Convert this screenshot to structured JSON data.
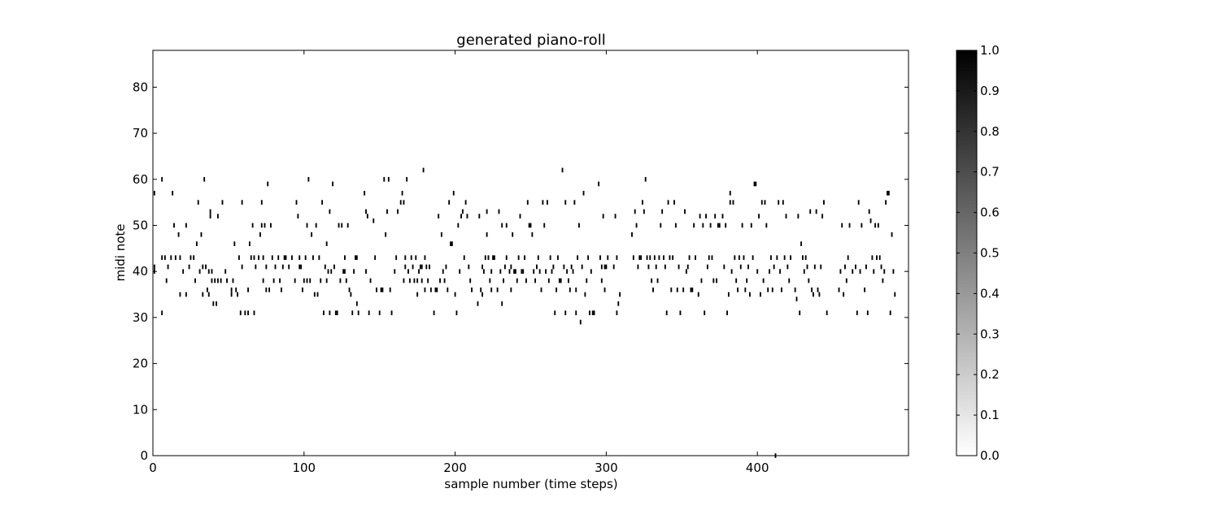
{
  "chart_data": {
    "type": "heatmap",
    "title": "generated piano-roll",
    "xlabel": "sample number (time steps)",
    "ylabel": "midi note",
    "xlim": [
      0,
      500
    ],
    "ylim": [
      0,
      88
    ],
    "xticks": [
      0,
      100,
      200,
      300,
      400
    ],
    "yticks": [
      0,
      10,
      20,
      30,
      40,
      50,
      60,
      70,
      80
    ],
    "colorbar": {
      "cmap": "gray_r",
      "min": 0.0,
      "max": 1.0,
      "ticks": [
        "0.0",
        "0.1",
        "0.2",
        "0.3",
        "0.4",
        "0.5",
        "0.6",
        "0.7",
        "0.8",
        "0.9",
        "1.0"
      ]
    },
    "notes": [
      [
        1,
        57
      ],
      [
        1,
        41
      ],
      [
        1,
        40
      ],
      [
        6,
        60
      ],
      [
        6,
        43
      ],
      [
        6,
        31
      ],
      [
        8,
        43
      ],
      [
        9,
        38
      ],
      [
        10,
        41
      ],
      [
        12,
        43
      ],
      [
        13,
        57
      ],
      [
        14,
        50
      ],
      [
        15,
        43
      ],
      [
        17,
        48
      ],
      [
        18,
        43
      ],
      [
        18,
        35
      ],
      [
        20,
        40
      ],
      [
        22,
        50
      ],
      [
        22,
        35
      ],
      [
        24,
        41
      ],
      [
        25,
        43
      ],
      [
        27,
        43
      ],
      [
        28,
        38
      ],
      [
        29,
        46
      ],
      [
        30,
        55
      ],
      [
        31,
        40
      ],
      [
        32,
        48
      ],
      [
        33,
        41
      ],
      [
        33,
        35
      ],
      [
        34,
        60
      ],
      [
        35,
        41
      ],
      [
        36,
        36
      ],
      [
        37,
        40
      ],
      [
        37,
        35
      ],
      [
        38,
        53
      ],
      [
        38,
        52
      ],
      [
        39,
        40
      ],
      [
        39,
        38
      ],
      [
        40,
        33
      ],
      [
        41,
        38
      ],
      [
        42,
        33
      ],
      [
        43,
        38
      ],
      [
        43,
        52
      ],
      [
        45,
        38
      ],
      [
        46,
        55
      ],
      [
        48,
        40
      ],
      [
        49,
        38
      ],
      [
        52,
        36
      ],
      [
        52,
        35
      ],
      [
        53,
        38
      ],
      [
        54,
        46
      ],
      [
        55,
        36
      ],
      [
        56,
        35
      ],
      [
        57,
        43
      ],
      [
        58,
        31
      ],
      [
        59,
        55
      ],
      [
        59,
        41
      ],
      [
        61,
        31
      ],
      [
        63,
        36
      ],
      [
        63,
        31
      ],
      [
        64,
        46
      ],
      [
        65,
        43
      ],
      [
        66,
        50
      ],
      [
        67,
        31
      ],
      [
        67,
        43
      ],
      [
        68,
        41
      ],
      [
        70,
        43
      ],
      [
        71,
        48
      ],
      [
        72,
        55
      ],
      [
        72,
        50
      ],
      [
        73,
        43
      ],
      [
        73,
        38
      ],
      [
        74,
        50
      ],
      [
        75,
        41
      ],
      [
        75,
        36
      ],
      [
        76,
        59
      ],
      [
        77,
        36
      ],
      [
        78,
        50
      ],
      [
        79,
        43
      ],
      [
        80,
        38
      ],
      [
        81,
        41
      ],
      [
        83,
        43
      ],
      [
        84,
        38
      ],
      [
        85,
        36
      ],
      [
        86,
        41
      ],
      [
        87,
        43
      ],
      [
        88,
        43
      ],
      [
        90,
        41
      ],
      [
        92,
        43
      ],
      [
        94,
        38
      ],
      [
        95,
        55
      ],
      [
        96,
        52
      ],
      [
        97,
        43
      ],
      [
        97,
        41
      ],
      [
        98,
        41
      ],
      [
        99,
        36
      ],
      [
        100,
        38
      ],
      [
        101,
        43
      ],
      [
        102,
        50
      ],
      [
        102,
        38
      ],
      [
        103,
        60
      ],
      [
        104,
        38
      ],
      [
        105,
        48
      ],
      [
        106,
        43
      ],
      [
        107,
        35
      ],
      [
        108,
        50
      ],
      [
        109,
        35
      ],
      [
        110,
        43
      ],
      [
        111,
        38
      ],
      [
        112,
        55
      ],
      [
        113,
        31
      ],
      [
        114,
        41
      ],
      [
        115,
        46
      ],
      [
        115,
        38
      ],
      [
        116,
        40
      ],
      [
        117,
        53
      ],
      [
        117,
        31
      ],
      [
        118,
        40
      ],
      [
        119,
        59
      ],
      [
        120,
        41
      ],
      [
        121,
        31
      ],
      [
        122,
        31
      ],
      [
        123,
        50
      ],
      [
        124,
        38
      ],
      [
        125,
        50
      ],
      [
        126,
        40
      ],
      [
        127,
        40
      ],
      [
        127,
        43
      ],
      [
        128,
        38
      ],
      [
        129,
        50
      ],
      [
        130,
        36
      ],
      [
        131,
        35
      ],
      [
        132,
        31
      ],
      [
        133,
        40
      ],
      [
        134,
        43
      ],
      [
        135,
        33
      ],
      [
        135,
        43
      ],
      [
        136,
        31
      ],
      [
        140,
        57
      ],
      [
        141,
        53
      ],
      [
        141,
        40
      ],
      [
        142,
        52
      ],
      [
        143,
        31
      ],
      [
        144,
        38
      ],
      [
        146,
        51
      ],
      [
        147,
        43
      ],
      [
        148,
        36
      ],
      [
        150,
        31
      ],
      [
        151,
        36
      ],
      [
        152,
        36
      ],
      [
        153,
        60
      ],
      [
        154,
        48
      ],
      [
        155,
        53
      ],
      [
        156,
        60
      ],
      [
        157,
        36
      ],
      [
        158,
        31
      ],
      [
        160,
        40
      ],
      [
        161,
        43
      ],
      [
        162,
        53
      ],
      [
        164,
        55
      ],
      [
        165,
        57
      ],
      [
        166,
        38
      ],
      [
        166,
        55
      ],
      [
        167,
        41
      ],
      [
        167,
        43
      ],
      [
        168,
        60
      ],
      [
        169,
        40
      ],
      [
        170,
        38
      ],
      [
        171,
        43
      ],
      [
        172,
        41
      ],
      [
        173,
        38
      ],
      [
        174,
        43
      ],
      [
        175,
        35
      ],
      [
        175,
        38
      ],
      [
        176,
        40
      ],
      [
        177,
        41
      ],
      [
        178,
        38
      ],
      [
        178,
        41
      ],
      [
        179,
        62
      ],
      [
        180,
        43
      ],
      [
        180,
        36
      ],
      [
        181,
        41
      ],
      [
        182,
        38
      ],
      [
        183,
        41
      ],
      [
        184,
        36
      ],
      [
        186,
        31
      ],
      [
        187,
        36
      ],
      [
        188,
        36
      ],
      [
        189,
        52
      ],
      [
        190,
        38
      ],
      [
        191,
        48
      ],
      [
        192,
        40
      ],
      [
        193,
        38
      ],
      [
        194,
        41
      ],
      [
        195,
        36
      ],
      [
        196,
        55
      ],
      [
        197,
        46
      ],
      [
        198,
        46
      ],
      [
        199,
        57
      ],
      [
        200,
        35
      ],
      [
        201,
        31
      ],
      [
        202,
        50
      ],
      [
        203,
        40
      ],
      [
        204,
        52
      ],
      [
        205,
        53
      ],
      [
        206,
        43
      ],
      [
        207,
        55
      ],
      [
        208,
        52
      ],
      [
        209,
        41
      ],
      [
        210,
        38
      ],
      [
        211,
        36
      ],
      [
        215,
        33
      ],
      [
        216,
        52
      ],
      [
        217,
        36
      ],
      [
        218,
        41
      ],
      [
        218,
        35
      ],
      [
        219,
        40
      ],
      [
        220,
        43
      ],
      [
        221,
        53
      ],
      [
        221,
        48
      ],
      [
        222,
        43
      ],
      [
        223,
        38
      ],
      [
        224,
        36
      ],
      [
        224,
        40
      ],
      [
        225,
        43
      ],
      [
        226,
        43
      ],
      [
        228,
        36
      ],
      [
        229,
        53
      ],
      [
        230,
        40
      ],
      [
        231,
        50
      ],
      [
        231,
        33
      ],
      [
        232,
        38
      ],
      [
        233,
        41
      ],
      [
        234,
        50
      ],
      [
        234,
        43
      ],
      [
        236,
        40
      ],
      [
        237,
        41
      ],
      [
        237,
        36
      ],
      [
        238,
        48
      ],
      [
        239,
        40
      ],
      [
        240,
        40
      ],
      [
        241,
        38
      ],
      [
        242,
        43
      ],
      [
        243,
        52
      ],
      [
        244,
        40
      ],
      [
        245,
        40
      ],
      [
        246,
        43
      ],
      [
        247,
        38
      ],
      [
        248,
        55
      ],
      [
        249,
        50
      ],
      [
        250,
        50
      ],
      [
        251,
        48
      ],
      [
        252,
        40
      ],
      [
        253,
        38
      ],
      [
        254,
        41
      ],
      [
        255,
        43
      ],
      [
        256,
        40
      ],
      [
        257,
        36
      ],
      [
        258,
        55
      ],
      [
        259,
        50
      ],
      [
        260,
        40
      ],
      [
        261,
        55
      ],
      [
        262,
        38
      ],
      [
        263,
        43
      ],
      [
        264,
        40
      ],
      [
        265,
        41
      ],
      [
        266,
        31
      ],
      [
        267,
        36
      ],
      [
        268,
        43
      ],
      [
        269,
        38
      ],
      [
        270,
        38
      ],
      [
        271,
        62
      ],
      [
        272,
        41
      ],
      [
        273,
        55
      ],
      [
        273,
        31
      ],
      [
        274,
        40
      ],
      [
        275,
        38
      ],
      [
        276,
        36
      ],
      [
        277,
        41
      ],
      [
        278,
        40
      ],
      [
        279,
        55
      ],
      [
        280,
        31
      ],
      [
        280,
        36
      ],
      [
        281,
        43
      ],
      [
        282,
        50
      ],
      [
        283,
        29
      ],
      [
        284,
        41
      ],
      [
        285,
        57
      ],
      [
        286,
        35
      ],
      [
        287,
        38
      ],
      [
        288,
        43
      ],
      [
        289,
        31
      ],
      [
        290,
        40
      ],
      [
        291,
        31
      ],
      [
        292,
        31
      ],
      [
        295,
        59
      ],
      [
        296,
        43
      ],
      [
        297,
        38
      ],
      [
        297,
        41
      ],
      [
        298,
        52
      ],
      [
        299,
        41
      ],
      [
        299,
        36
      ],
      [
        300,
        41
      ],
      [
        301,
        43
      ],
      [
        305,
        41
      ],
      [
        306,
        52
      ],
      [
        307,
        43
      ],
      [
        307,
        31
      ],
      [
        308,
        33
      ],
      [
        309,
        35
      ],
      [
        317,
        48
      ],
      [
        318,
        43
      ],
      [
        319,
        53
      ],
      [
        320,
        50
      ],
      [
        321,
        41
      ],
      [
        322,
        43
      ],
      [
        323,
        43
      ],
      [
        324,
        55
      ],
      [
        325,
        53
      ],
      [
        326,
        60
      ],
      [
        327,
        43
      ],
      [
        328,
        41
      ],
      [
        329,
        43
      ],
      [
        330,
        38
      ],
      [
        331,
        36
      ],
      [
        332,
        43
      ],
      [
        333,
        41
      ],
      [
        334,
        38
      ],
      [
        335,
        43
      ],
      [
        336,
        50
      ],
      [
        337,
        53
      ],
      [
        338,
        43
      ],
      [
        339,
        41
      ],
      [
        340,
        31
      ],
      [
        341,
        55
      ],
      [
        342,
        43
      ],
      [
        343,
        36
      ],
      [
        344,
        43
      ],
      [
        345,
        55
      ],
      [
        346,
        50
      ],
      [
        347,
        36
      ],
      [
        348,
        41
      ],
      [
        349,
        31
      ],
      [
        351,
        36
      ],
      [
        352,
        53
      ],
      [
        353,
        40
      ],
      [
        354,
        41
      ],
      [
        355,
        43
      ],
      [
        356,
        36
      ],
      [
        357,
        36
      ],
      [
        358,
        50
      ],
      [
        359,
        43
      ],
      [
        361,
        35
      ],
      [
        362,
        52
      ],
      [
        363,
        38
      ],
      [
        364,
        50
      ],
      [
        365,
        31
      ],
      [
        366,
        52
      ],
      [
        367,
        41
      ],
      [
        368,
        43
      ],
      [
        369,
        50
      ],
      [
        370,
        43
      ],
      [
        371,
        38
      ],
      [
        372,
        52
      ],
      [
        373,
        38
      ],
      [
        374,
        50
      ],
      [
        375,
        50
      ],
      [
        377,
        52
      ],
      [
        378,
        41
      ],
      [
        379,
        50
      ],
      [
        380,
        31
      ],
      [
        381,
        35
      ],
      [
        382,
        55
      ],
      [
        382,
        57
      ],
      [
        383,
        40
      ],
      [
        384,
        55
      ],
      [
        385,
        43
      ],
      [
        386,
        38
      ],
      [
        387,
        36
      ],
      [
        388,
        43
      ],
      [
        389,
        41
      ],
      [
        390,
        50
      ],
      [
        391,
        43
      ],
      [
        392,
        36
      ],
      [
        393,
        38
      ],
      [
        394,
        41
      ],
      [
        395,
        35
      ],
      [
        396,
        50
      ],
      [
        397,
        43
      ],
      [
        398,
        59
      ],
      [
        399,
        59
      ],
      [
        400,
        40
      ],
      [
        401,
        52
      ],
      [
        402,
        35
      ],
      [
        403,
        55
      ],
      [
        404,
        38
      ],
      [
        405,
        55
      ],
      [
        406,
        50
      ],
      [
        407,
        36
      ],
      [
        408,
        40
      ],
      [
        409,
        43
      ],
      [
        410,
        36
      ],
      [
        411,
        41
      ],
      [
        412,
        0
      ],
      [
        413,
        43
      ],
      [
        414,
        55
      ],
      [
        415,
        40
      ],
      [
        416,
        36
      ],
      [
        417,
        55
      ],
      [
        418,
        43
      ],
      [
        419,
        52
      ],
      [
        420,
        41
      ],
      [
        421,
        38
      ],
      [
        422,
        43
      ],
      [
        425,
        36
      ],
      [
        426,
        34
      ],
      [
        427,
        52
      ],
      [
        428,
        31
      ],
      [
        429,
        46
      ],
      [
        430,
        43
      ],
      [
        431,
        40
      ],
      [
        432,
        43
      ],
      [
        433,
        41
      ],
      [
        434,
        38
      ],
      [
        435,
        53
      ],
      [
        436,
        36
      ],
      [
        437,
        35
      ],
      [
        438,
        41
      ],
      [
        439,
        53
      ],
      [
        440,
        36
      ],
      [
        441,
        35
      ],
      [
        442,
        41
      ],
      [
        443,
        52
      ],
      [
        444,
        55
      ],
      [
        446,
        31
      ],
      [
        454,
        36
      ],
      [
        455,
        40
      ],
      [
        456,
        50
      ],
      [
        457,
        35
      ],
      [
        458,
        41
      ],
      [
        459,
        38
      ],
      [
        460,
        43
      ],
      [
        461,
        50
      ],
      [
        463,
        40
      ],
      [
        465,
        41
      ],
      [
        466,
        31
      ],
      [
        467,
        55
      ],
      [
        468,
        40
      ],
      [
        469,
        50
      ],
      [
        471,
        36
      ],
      [
        472,
        41
      ],
      [
        473,
        31
      ],
      [
        474,
        53
      ],
      [
        475,
        51
      ],
      [
        476,
        43
      ],
      [
        477,
        40
      ],
      [
        478,
        50
      ],
      [
        479,
        43
      ],
      [
        480,
        50
      ],
      [
        481,
        43
      ],
      [
        482,
        41
      ],
      [
        483,
        38
      ],
      [
        484,
        40
      ],
      [
        485,
        55
      ],
      [
        486,
        57
      ],
      [
        487,
        57
      ],
      [
        488,
        31
      ],
      [
        489,
        48
      ],
      [
        490,
        40
      ],
      [
        491,
        35
      ]
    ]
  }
}
